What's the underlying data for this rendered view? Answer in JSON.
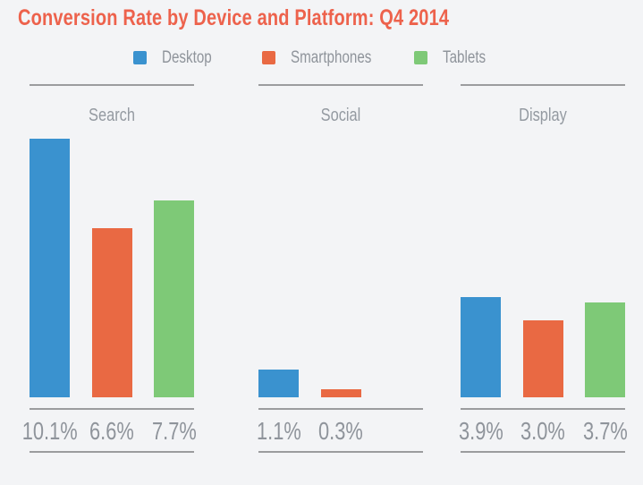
{
  "title": "Conversion Rate by Device and Platform: Q4 2014",
  "colors": {
    "background": "#F3F4F6",
    "title": "#ED624C",
    "rule": "#9B9C9E",
    "label_gray": "#8F949B",
    "group_label_gray": "#949AA1",
    "desktop_blue": "#3A92CF",
    "smartphones_orange": "#E96943",
    "tablets_green": "#7EC977"
  },
  "legend": {
    "items": [
      {
        "label": "Desktop",
        "color": "#3A92CF"
      },
      {
        "label": "Smartphones",
        "color": "#E96943"
      },
      {
        "label": "Tablets",
        "color": "#7EC977"
      }
    ]
  },
  "chart_data": {
    "type": "bar",
    "title": "Conversion Rate by Device and Platform: Q4 2014",
    "categories": [
      "Search",
      "Social",
      "Display"
    ],
    "series": [
      {
        "name": "Desktop",
        "color": "#3A92CF",
        "values": [
          10.1,
          1.1,
          3.9
        ]
      },
      {
        "name": "Smartphones",
        "color": "#E96943",
        "values": [
          6.6,
          0.3,
          3.0
        ]
      },
      {
        "name": "Tablets",
        "color": "#7EC977",
        "values": [
          7.7,
          null,
          3.7
        ]
      }
    ],
    "value_labels": [
      [
        "10.1%",
        "6.6%",
        "7.7%"
      ],
      [
        "1.1%",
        "0.3%"
      ],
      [
        "3.9%",
        "3.0%",
        "3.7%"
      ]
    ],
    "xlabel": "",
    "ylabel": "",
    "ylim": [
      0,
      15.5
    ],
    "grid": false,
    "legend_position": "top",
    "value_label_position": "below-baseline"
  }
}
